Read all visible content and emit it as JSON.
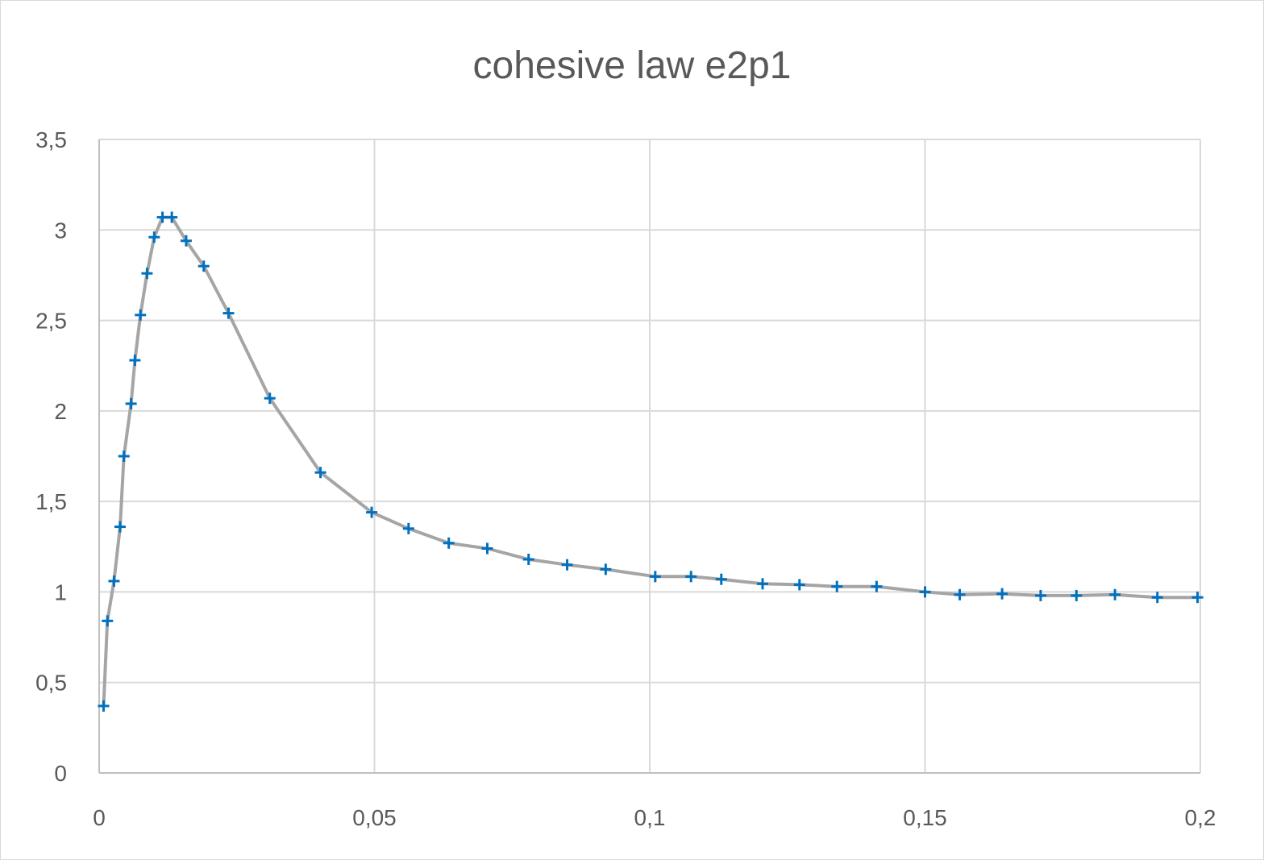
{
  "chart_data": {
    "type": "scatter",
    "title": "cohesive law e2p1",
    "xlabel": "",
    "ylabel": "",
    "xlim": [
      0,
      0.2
    ],
    "ylim": [
      0,
      3.5
    ],
    "x_ticks": [
      0,
      0.05,
      0.1,
      0.15,
      0.2
    ],
    "x_tick_labels": [
      "0",
      "0,05",
      "0,1",
      "0,15",
      "0,2"
    ],
    "y_ticks": [
      0,
      0.5,
      1,
      1.5,
      2,
      2.5,
      3,
      3.5
    ],
    "y_tick_labels": [
      "0",
      "0,5",
      "1",
      "1,5",
      "2",
      "2,5",
      "3",
      "3,5"
    ],
    "grid": true,
    "legend": "none",
    "line_color": "#a5a5a5",
    "marker_color": "#0070c0",
    "marker_style": "plus",
    "series": [
      {
        "x": [
          0.0008,
          0.0015,
          0.0027,
          0.0038,
          0.0045,
          0.0058,
          0.0065,
          0.0075,
          0.0087,
          0.01,
          0.0115,
          0.0132,
          0.0158,
          0.019,
          0.0235,
          0.031,
          0.0402,
          0.0495,
          0.0562,
          0.0635,
          0.0705,
          0.078,
          0.085,
          0.092,
          0.101,
          0.1075,
          0.113,
          0.1205,
          0.1272,
          0.134,
          0.1412,
          0.15,
          0.1563,
          0.164,
          0.171,
          0.1775,
          0.1845,
          0.1922,
          0.1995
        ],
        "y": [
          0.37,
          0.84,
          1.06,
          1.36,
          1.75,
          2.04,
          2.28,
          2.53,
          2.76,
          2.96,
          3.07,
          3.07,
          2.94,
          2.8,
          2.54,
          2.07,
          1.66,
          1.44,
          1.35,
          1.27,
          1.24,
          1.18,
          1.15,
          1.125,
          1.085,
          1.085,
          1.07,
          1.045,
          1.04,
          1.03,
          1.03,
          1.0,
          0.985,
          0.99,
          0.98,
          0.98,
          0.985,
          0.97,
          0.97
        ]
      }
    ]
  }
}
